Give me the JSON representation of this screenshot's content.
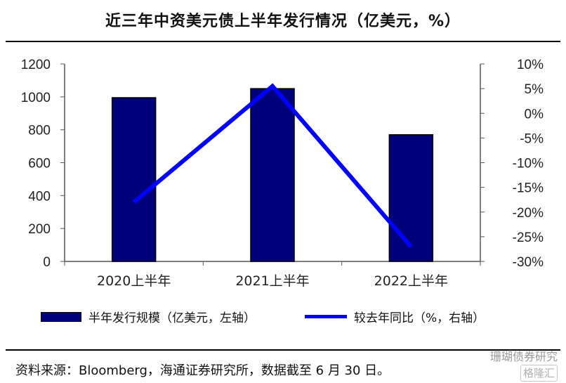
{
  "chart_data": {
    "type": "bar+line",
    "title": "近三年中资美元债上半年发行情况（亿美元，%）",
    "categories": [
      "2020上半年",
      "2021上半年",
      "2022上半年"
    ],
    "series": [
      {
        "name": "半年发行规模（亿美元，左轴）",
        "type": "bar",
        "axis": "left",
        "values": [
          995,
          1050,
          770
        ],
        "color": "#00007a"
      },
      {
        "name": "较去年同比（%，右轴）",
        "type": "line",
        "axis": "right",
        "values": [
          -18,
          5.5,
          -27
        ],
        "color": "#0000ff"
      }
    ],
    "y_left": {
      "min": 0,
      "max": 1200,
      "ticks": [
        0,
        200,
        400,
        600,
        800,
        1000,
        1200
      ],
      "tick_labels": [
        "0",
        "200",
        "400",
        "600",
        "800",
        "1000",
        "1200"
      ]
    },
    "y_right": {
      "min": -30,
      "max": 10,
      "ticks": [
        -30,
        -25,
        -20,
        -15,
        -10,
        -5,
        0,
        5,
        10
      ],
      "tick_labels": [
        "-30%",
        "-25%",
        "-20%",
        "-15%",
        "-10%",
        "-5%",
        "0%",
        "5%",
        "10%"
      ]
    },
    "grid": false,
    "legend_position": "bottom"
  },
  "source_text": "资料来源：Bloomberg，海通证券研究所，数据截至 6 月 30 日。",
  "watermark": {
    "text": "珊瑚债券研究",
    "badge": "格隆汇"
  }
}
